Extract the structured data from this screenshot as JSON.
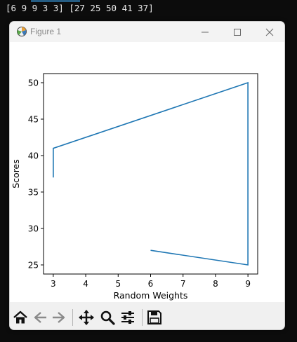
{
  "terminal": {
    "output_line": "[6 9 9 3 3] [27 25 50 41 37]"
  },
  "window": {
    "title": "Figure 1",
    "controls": {
      "minimize": "minimize-icon",
      "maximize": "maximize-icon",
      "close": "close-icon"
    }
  },
  "toolbar": {
    "tools": [
      "home-icon",
      "back-icon",
      "forward-icon",
      "pan-icon",
      "zoom-icon",
      "configure-subplots-icon",
      "save-icon"
    ]
  },
  "chart_data": {
    "type": "line",
    "x": [
      6,
      9,
      9,
      3,
      3
    ],
    "y": [
      27,
      25,
      50,
      41,
      37
    ],
    "xlabel": "Random Weights",
    "ylabel": "Scores",
    "xlim": [
      2.7,
      9.3
    ],
    "ylim": [
      23.75,
      51.25
    ],
    "xticks": [
      3,
      4,
      5,
      6,
      7,
      8,
      9
    ],
    "yticks": [
      25,
      30,
      35,
      40,
      45,
      50
    ],
    "xtick_labels": [
      "3",
      "4",
      "5",
      "6",
      "7",
      "8",
      "9"
    ],
    "ytick_labels": [
      "25",
      "30",
      "35",
      "40",
      "45",
      "50"
    ],
    "line_color": "#1f77b4",
    "grid": false
  }
}
